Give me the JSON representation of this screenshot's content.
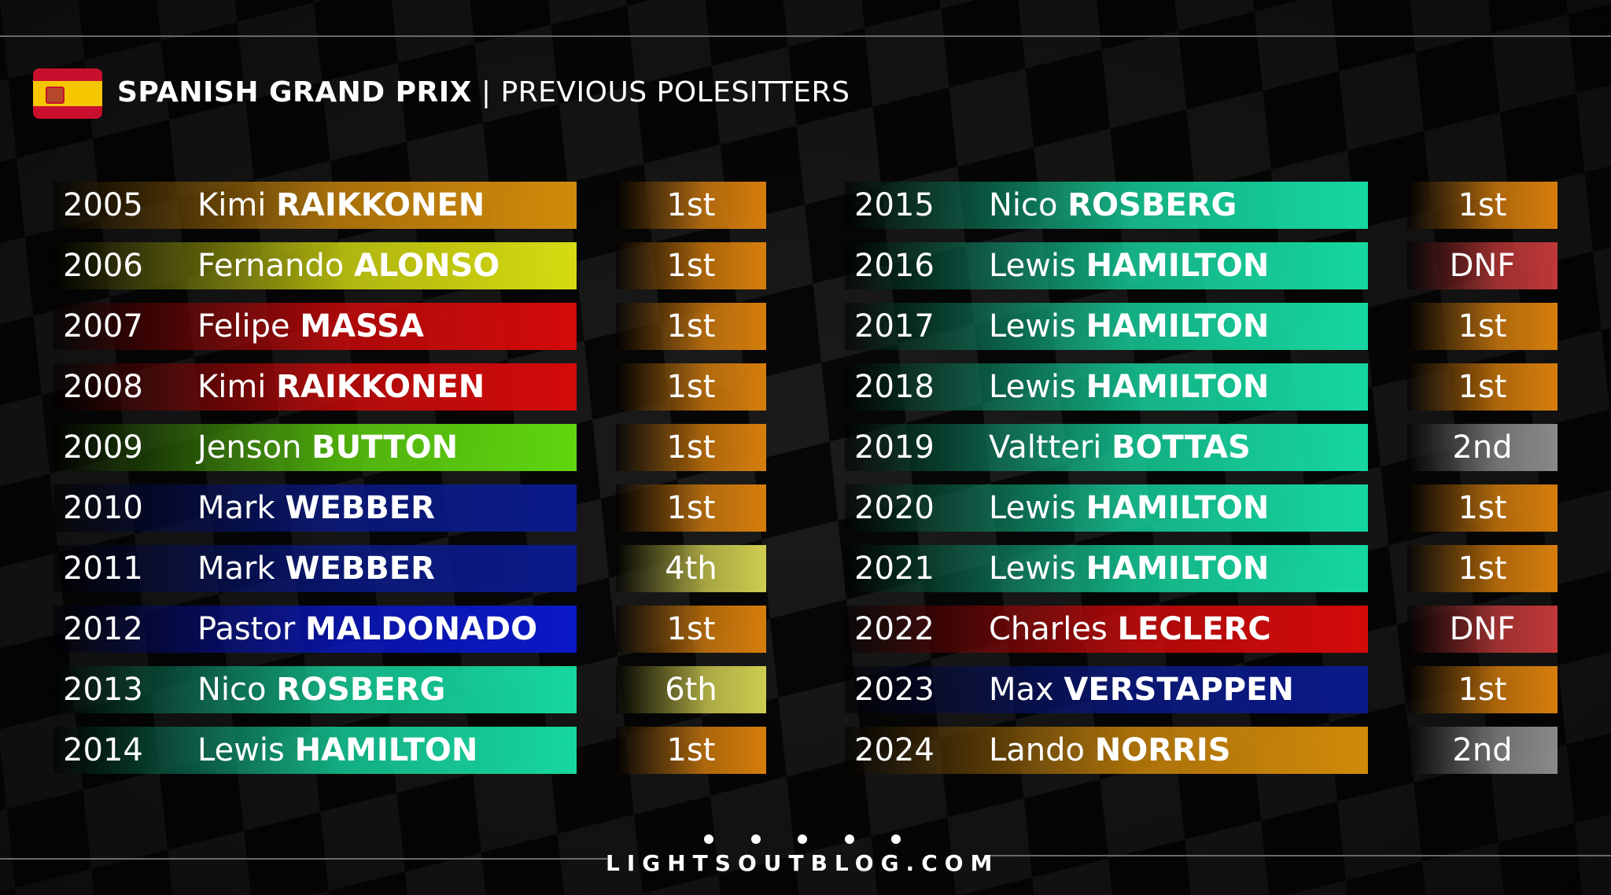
{
  "header": {
    "title_bold": "SPANISH GRAND PRIX",
    "title_rest": "| PREVIOUS POLESITTERS"
  },
  "footer": {
    "site": "LIGHTSOUTBLOG.COM"
  },
  "colors": {
    "mclaren": "#d18a0a",
    "renault": "#d6dc10",
    "ferrari": "#d40a0a",
    "brawn": "#5fd60e",
    "red_bull": "#0a1a8a",
    "williams": "#0a18c8",
    "mercedes": "#16d7a0",
    "win": "#d67e0c",
    "dnf": "#c03838",
    "second": "#8a8a8a",
    "minor": "#cfcd50"
  },
  "left": [
    {
      "year": "2005",
      "first": "Kimi",
      "last": "RAIKKONEN",
      "result": "1st",
      "team_color": "#d18a0a",
      "result_color": "#d67e0c"
    },
    {
      "year": "2006",
      "first": "Fernando",
      "last": "ALONSO",
      "result": "1st",
      "team_color": "#d6dc10",
      "result_color": "#d67e0c"
    },
    {
      "year": "2007",
      "first": "Felipe",
      "last": "MASSA",
      "result": "1st",
      "team_color": "#d40a0a",
      "result_color": "#d67e0c"
    },
    {
      "year": "2008",
      "first": "Kimi",
      "last": "RAIKKONEN",
      "result": "1st",
      "team_color": "#d40a0a",
      "result_color": "#d67e0c"
    },
    {
      "year": "2009",
      "first": "Jenson",
      "last": "BUTTON",
      "result": "1st",
      "team_color": "#5fd60e",
      "result_color": "#d67e0c"
    },
    {
      "year": "2010",
      "first": "Mark",
      "last": "WEBBER",
      "result": "1st",
      "team_color": "#0a1a8a",
      "result_color": "#d67e0c"
    },
    {
      "year": "2011",
      "first": "Mark",
      "last": "WEBBER",
      "result": "4th",
      "team_color": "#0a1a8a",
      "result_color": "#cfcd50"
    },
    {
      "year": "2012",
      "first": "Pastor",
      "last": "MALDONADO",
      "result": "1st",
      "team_color": "#0a18c8",
      "result_color": "#d67e0c"
    },
    {
      "year": "2013",
      "first": "Nico",
      "last": "ROSBERG",
      "result": "6th",
      "team_color": "#16d7a0",
      "result_color": "#cfcd50"
    },
    {
      "year": "2014",
      "first": "Lewis",
      "last": "HAMILTON",
      "result": "1st",
      "team_color": "#16d7a0",
      "result_color": "#d67e0c"
    }
  ],
  "right": [
    {
      "year": "2015",
      "first": "Nico",
      "last": "ROSBERG",
      "result": "1st",
      "team_color": "#16d7a0",
      "result_color": "#d67e0c"
    },
    {
      "year": "2016",
      "first": "Lewis",
      "last": "HAMILTON",
      "result": "DNF",
      "team_color": "#16d7a0",
      "result_color": "#c03838"
    },
    {
      "year": "2017",
      "first": "Lewis",
      "last": "HAMILTON",
      "result": "1st",
      "team_color": "#16d7a0",
      "result_color": "#d67e0c"
    },
    {
      "year": "2018",
      "first": "Lewis",
      "last": "HAMILTON",
      "result": "1st",
      "team_color": "#16d7a0",
      "result_color": "#d67e0c"
    },
    {
      "year": "2019",
      "first": "Valtteri",
      "last": "BOTTAS",
      "result": "2nd",
      "team_color": "#16d7a0",
      "result_color": "#8a8a8a"
    },
    {
      "year": "2020",
      "first": "Lewis",
      "last": "HAMILTON",
      "result": "1st",
      "team_color": "#16d7a0",
      "result_color": "#d67e0c"
    },
    {
      "year": "2021",
      "first": "Lewis",
      "last": "HAMILTON",
      "result": "1st",
      "team_color": "#16d7a0",
      "result_color": "#d67e0c"
    },
    {
      "year": "2022",
      "first": "Charles",
      "last": "LECLERC",
      "result": "DNF",
      "team_color": "#d40a0a",
      "result_color": "#c03838"
    },
    {
      "year": "2023",
      "first": "Max",
      "last": "VERSTAPPEN",
      "result": "1st",
      "team_color": "#0a1a8a",
      "result_color": "#d67e0c"
    },
    {
      "year": "2024",
      "first": "Lando",
      "last": "NORRIS",
      "result": "2nd",
      "team_color": "#d18a0a",
      "result_color": "#8a8a8a"
    }
  ]
}
